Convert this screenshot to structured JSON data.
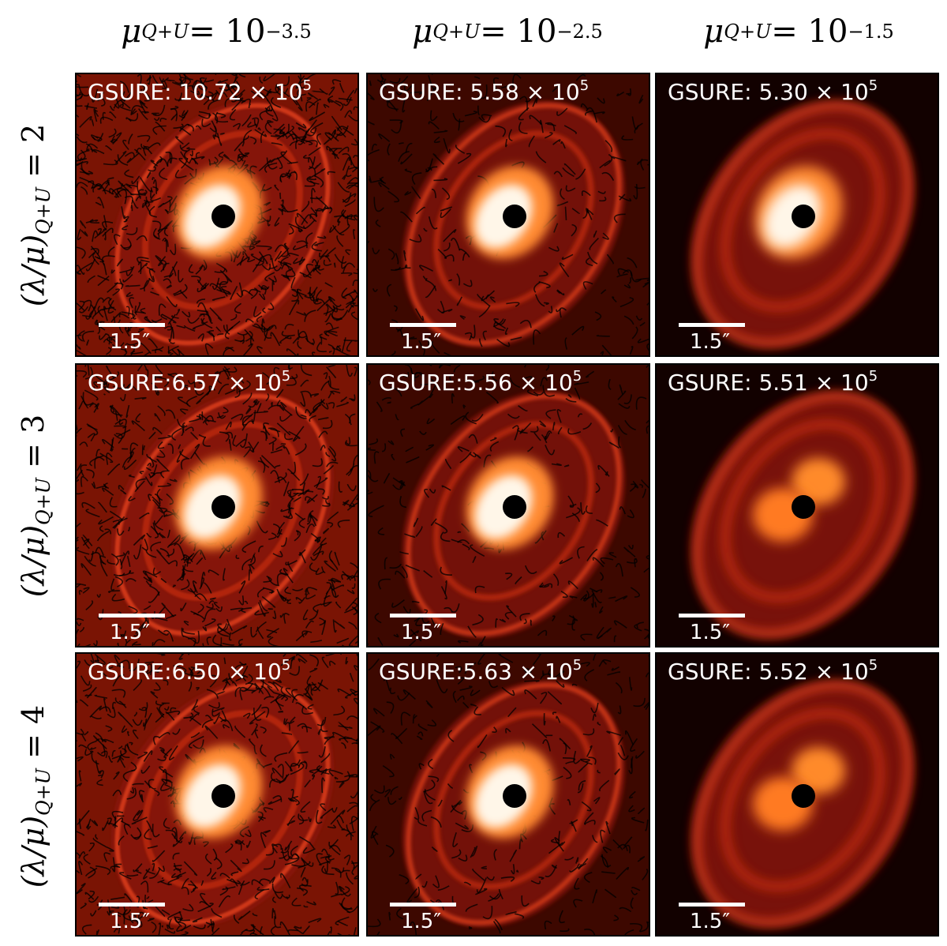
{
  "column_headers": [
    {
      "symbol": "μ",
      "sub": "Q+U",
      "eq": " = 10",
      "exp": "−3.5"
    },
    {
      "symbol": "μ",
      "sub": "Q+U",
      "eq": " = 10",
      "exp": "−2.5"
    },
    {
      "symbol": "μ",
      "sub": "Q+U",
      "eq": " = 10",
      "exp": "−1.5"
    }
  ],
  "row_headers": [
    {
      "pre": "(λ/μ)",
      "sub": "Q+U",
      "eq": " = 2"
    },
    {
      "pre": "(λ/μ)",
      "sub": "Q+U",
      "eq": " = 3"
    },
    {
      "pre": "(λ/μ)",
      "sub": "Q+U",
      "eq": " = 4"
    }
  ],
  "panels": [
    {
      "label": "GSURE: 10.72 × 10",
      "exp": "5",
      "scale": "1.5″",
      "style": "noisy"
    },
    {
      "label": "GSURE: 5.58 × 10",
      "exp": "5",
      "scale": "1.5″",
      "style": "medium"
    },
    {
      "label": "GSURE: 5.30 × 10",
      "exp": "5",
      "scale": "1.5″",
      "style": "smooth"
    },
    {
      "label": "GSURE:6.57 × 10",
      "exp": "5",
      "scale": "1.5″",
      "style": "noisy"
    },
    {
      "label": "GSURE:5.56 × 10",
      "exp": "5",
      "scale": "1.5″",
      "style": "medium"
    },
    {
      "label": "GSURE: 5.51 × 10",
      "exp": "5",
      "scale": "1.5″",
      "style": "smooth-lobes"
    },
    {
      "label": "GSURE:6.50 × 10",
      "exp": "5",
      "scale": "1.5″",
      "style": "noisy"
    },
    {
      "label": "GSURE:5.63 × 10",
      "exp": "5",
      "scale": "1.5″",
      "style": "medium"
    },
    {
      "label": "GSURE: 5.52 × 10",
      "exp": "5",
      "scale": "1.5″",
      "style": "smooth-lobes"
    }
  ],
  "colors": {
    "background_dark": "#3a0500",
    "disk": "#b8200a",
    "ring": "#e0401a",
    "core": "#fff6e8",
    "mask": "#000000"
  }
}
